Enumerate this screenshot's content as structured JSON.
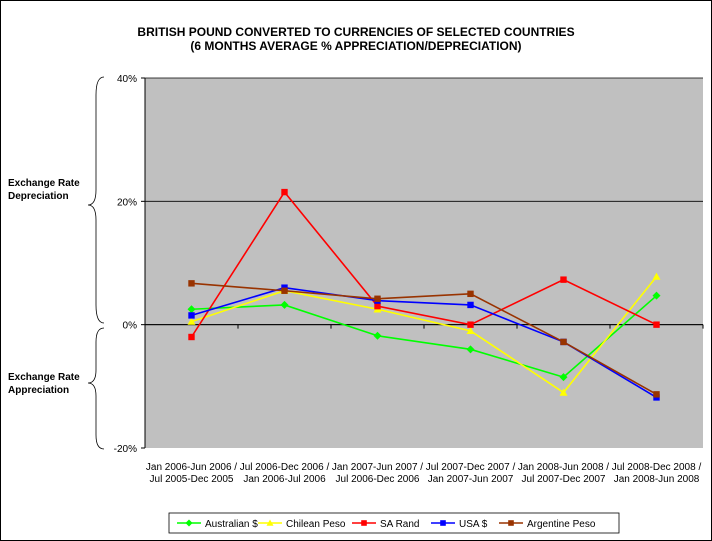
{
  "chart_data": {
    "type": "line",
    "title_lines": [
      "BRITISH POUND CONVERTED TO CURRENCIES OF SELECTED COUNTRIES",
      "(6 MONTHS AVERAGE % APPRECIATION/DEPRECIATION)"
    ],
    "categories": [
      [
        "Jan 2006-Jun 2006 /",
        "Jul 2005-Dec 2005"
      ],
      [
        "Jul 2006-Dec 2006 /",
        "Jan 2006-Jul 2006"
      ],
      [
        "Jan 2007-Jun 2007 /",
        "Jul 2006-Dec 2006"
      ],
      [
        "Jul 2007-Dec 2007 /",
        "Jan 2007-Jun 2007"
      ],
      [
        "Jan 2008-Jun 2008 /",
        "Jul 2007-Dec 2007"
      ],
      [
        "Jul 2008-Dec 2008 /",
        "Jan 2008-Jun 2008"
      ]
    ],
    "y_ticks": [
      {
        "value": 40,
        "label": "40%"
      },
      {
        "value": 20,
        "label": "20%"
      },
      {
        "value": 0,
        "label": "0%"
      },
      {
        "value": -20,
        "label": "-20%"
      }
    ],
    "ylim": [
      -20,
      40
    ],
    "grid": "major horizontal gridlines",
    "plot_background": "#C0C0C0",
    "side_labels": {
      "depreciation": [
        "Exchange Rate",
        "Depreciation"
      ],
      "appreciation": [
        "Exchange Rate",
        "Appreciation"
      ]
    },
    "legend_position": "bottom",
    "series": [
      {
        "name": "Australian $",
        "color": "#00FF00",
        "marker": "diamond",
        "values": [
          2.5,
          3.2,
          -1.8,
          -4.0,
          -8.5,
          4.7
        ]
      },
      {
        "name": "Chilean Peso",
        "color": "#FFFF00",
        "marker": "triangle",
        "values": [
          0.5,
          5.5,
          2.5,
          -1.0,
          -11.0,
          7.8
        ]
      },
      {
        "name": "SA Rand",
        "color": "#FF0000",
        "marker": "square",
        "values": [
          -2.0,
          21.5,
          3.0,
          0.0,
          7.3,
          0.0
        ]
      },
      {
        "name": "USA $",
        "color": "#0000FF",
        "marker": "square",
        "values": [
          1.5,
          6.0,
          3.9,
          3.2,
          -2.8,
          -11.8
        ]
      },
      {
        "name": "Argentine Peso",
        "color": "#993300",
        "marker": "square",
        "values": [
          6.7,
          5.5,
          4.2,
          5.0,
          -2.8,
          -11.3
        ]
      }
    ]
  }
}
